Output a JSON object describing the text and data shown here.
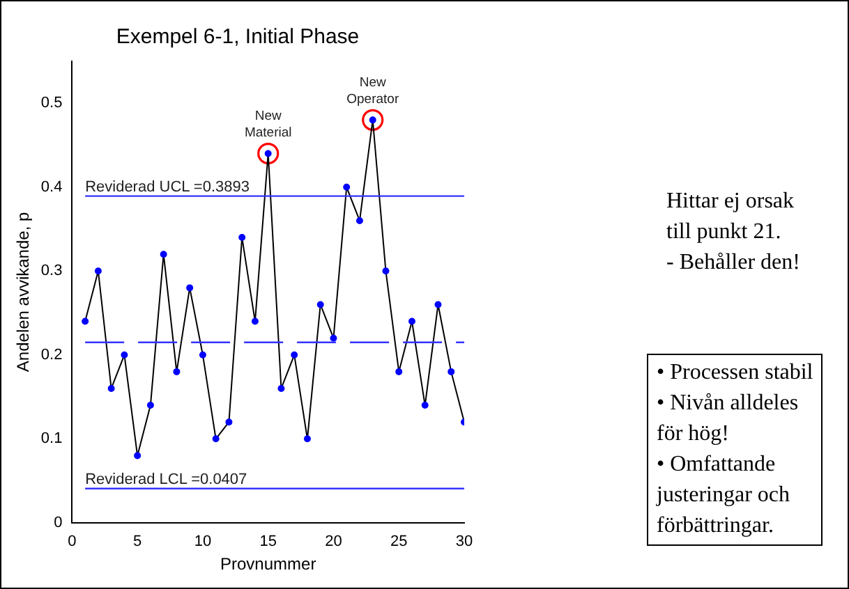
{
  "chart_data": {
    "type": "line",
    "title": "Exempel 6-1, Initial Phase",
    "xlabel": "Provnummer",
    "ylabel": "Andelen avvikande, p",
    "x": [
      1,
      2,
      3,
      4,
      5,
      6,
      7,
      8,
      9,
      10,
      11,
      12,
      13,
      14,
      15,
      16,
      17,
      18,
      19,
      20,
      21,
      22,
      23,
      24,
      25,
      26,
      27,
      28,
      29,
      30
    ],
    "series": [
      {
        "color": "#000000",
        "marker": "circle",
        "colors": [
          "#0000ff",
          "#0000ff",
          "#0000ff",
          "#0000ff",
          "#0000ff",
          "#0000ff",
          "#0000ff",
          "#0000ff",
          "#0000ff",
          "#0000ff",
          "#0000ff",
          "#0000ff",
          "#0000ff",
          "#0000ff",
          "#0000ff",
          "#0000ff",
          "#0000ff",
          "#0000ff",
          "#0000ff",
          "#0000ff",
          "#0000ff",
          "#0000ff",
          "#0000ff",
          "#0000ff",
          "#0000ff",
          "#0000ff",
          "#0000ff",
          "#0000ff",
          "#0000ff",
          "#0000ff"
        ],
        "values": [
          0.24,
          0.3,
          0.16,
          0.2,
          0.08,
          0.14,
          0.32,
          0.18,
          0.28,
          0.2,
          0.1,
          0.12,
          0.34,
          0.24,
          0.44,
          0.16,
          0.2,
          0.1,
          0.26,
          0.22,
          0.4,
          0.36,
          0.48,
          0.3,
          0.18,
          0.24,
          0.14,
          0.26,
          0.18,
          0.12
        ]
      },
      {
        "type": "scatter",
        "color": "#ff0000",
        "marker": "circle",
        "x": [
          15,
          23
        ],
        "values": [
          0.44,
          0.48
        ]
      }
    ],
    "xlim": [
      0,
      30
    ],
    "xticks": [
      0,
      5,
      10,
      15,
      20,
      25,
      30
    ],
    "ylim": [
      0,
      0.55
    ],
    "yticks": [
      0,
      0.1,
      0.2,
      0.3,
      0.4,
      0.5
    ],
    "grid": false,
    "legend": false,
    "ref_lines": [
      {
        "axis": "y",
        "value": 0.3893,
        "label": "Reviderad UCL =0.3893",
        "color": "#3333ff",
        "line_style": "solid"
      },
      {
        "axis": "y",
        "value": 0.215,
        "color": "#3333ff",
        "line_style": "dashed"
      },
      {
        "axis": "y",
        "value": 0.0407,
        "label": "Reviderad LCL =0.0407",
        "color": "#3333ff",
        "line_style": "solid"
      }
    ],
    "annotations": [
      {
        "text": "New\nMaterial",
        "x": 15,
        "y": 0.44
      },
      {
        "text": "New\nOperator",
        "x": 23,
        "y": 0.48
      },
      "Hittar ej orsak\ntill punkt 21.\n- Behåller den!",
      "• Processen stabil\n• Nivån alldeles\nför hög!\n• Omfattande\njusteringar och\nförbättringar."
    ]
  }
}
